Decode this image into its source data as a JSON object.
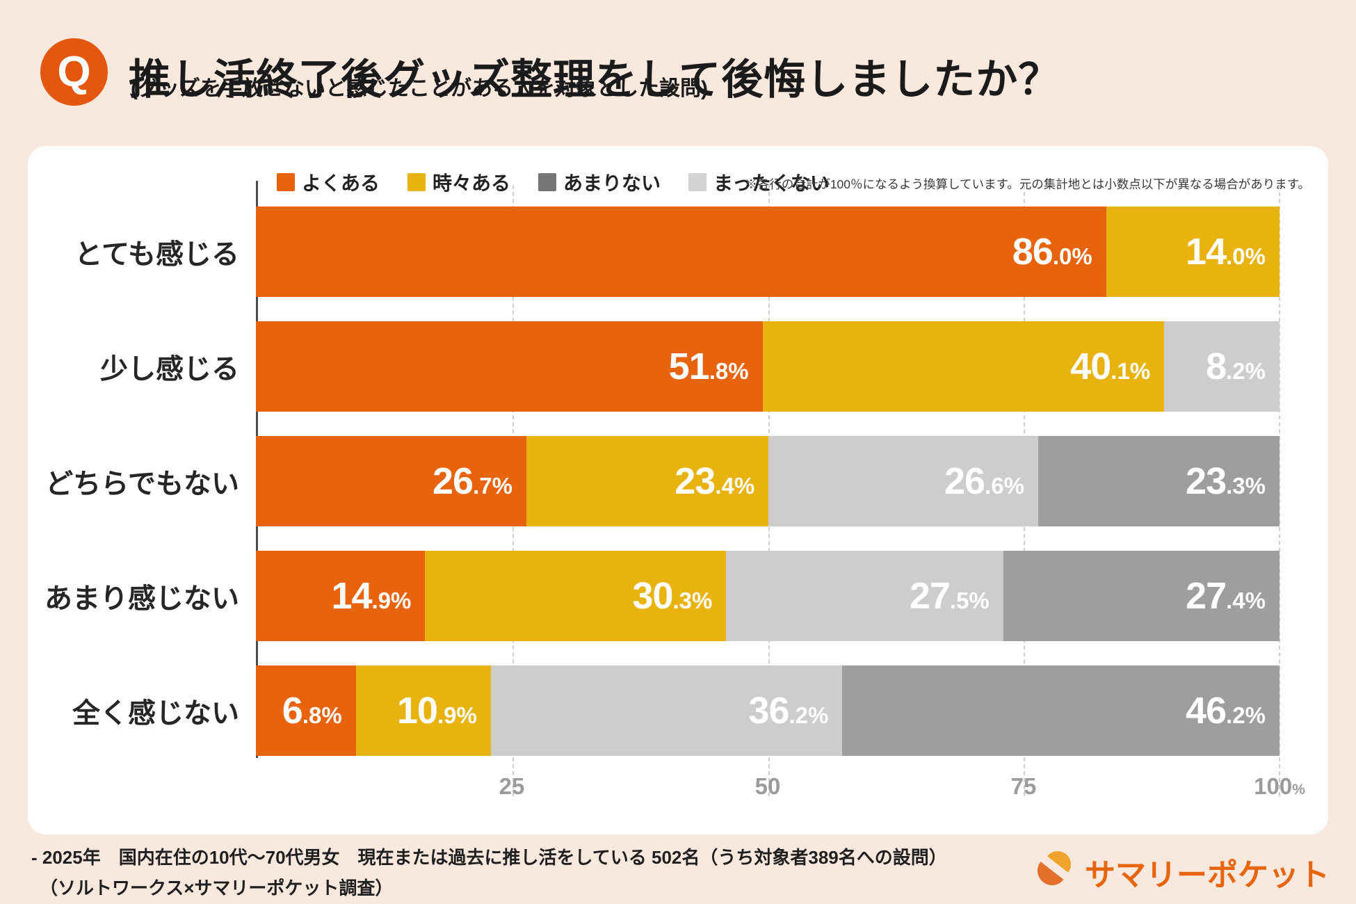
{
  "header": {
    "q_mark": "Q",
    "title": "推し活終了後グッズ整理をして後悔しましたか？",
    "subtitle": "(グッズを手放せないと感じたことがある人を対象とした設問)"
  },
  "chart_data": {
    "type": "bar",
    "orientation": "horizontal",
    "stacked": true,
    "unit": "%",
    "x_axis_max": 100,
    "grid": "dashed-vertical",
    "legend_position": "top",
    "note": "※各行の合計が100％になるよう換算しています。元の集計地とは小数点以下が異なる場合があります。",
    "palette": {
      "orange": "#E8630D",
      "yellow": "#E9B30F",
      "gray_light": "#CDCDCD",
      "gray_dark": "#9E9E9E"
    },
    "legend": [
      {
        "label": "よくある",
        "color": "#E8630D"
      },
      {
        "label": "時々ある",
        "color": "#E9B30F"
      },
      {
        "label": "あまりない",
        "color": "#757575"
      },
      {
        "label": "まったくない",
        "color": "#D3D3D3"
      }
    ],
    "categories": [
      "とても感じる",
      "少し感じる",
      "どちらでもない",
      "あまり感じない",
      "全く感じない"
    ],
    "rows": [
      {
        "category": "とても感じる",
        "segments": [
          {
            "value": 86.0,
            "color": "orange"
          },
          {
            "value": 14.0,
            "color": "yellow"
          }
        ]
      },
      {
        "category": "少し感じる",
        "segments": [
          {
            "value": 51.8,
            "color": "orange"
          },
          {
            "value": 40.1,
            "color": "yellow"
          },
          {
            "value": 8.2,
            "color": "gray_light"
          }
        ]
      },
      {
        "category": "どちらでもない",
        "segments": [
          {
            "value": 26.7,
            "color": "orange"
          },
          {
            "value": 23.4,
            "color": "yellow"
          },
          {
            "value": 26.6,
            "color": "gray_light"
          },
          {
            "value": 23.3,
            "color": "gray_dark"
          }
        ]
      },
      {
        "category": "あまり感じない",
        "segments": [
          {
            "value": 14.9,
            "color": "orange"
          },
          {
            "value": 30.3,
            "color": "yellow"
          },
          {
            "value": 27.5,
            "color": "gray_light"
          },
          {
            "value": 27.4,
            "color": "gray_dark"
          }
        ]
      },
      {
        "category": "全く感じない",
        "segments": [
          {
            "value": 6.8,
            "color": "orange"
          },
          {
            "value": 10.9,
            "color": "yellow"
          },
          {
            "value": 36.2,
            "color": "gray_light"
          },
          {
            "value": 46.2,
            "color": "gray_dark"
          }
        ]
      }
    ],
    "x_ticks": [
      {
        "value": 25,
        "label": "25",
        "suffix": ""
      },
      {
        "value": 50,
        "label": "50",
        "suffix": ""
      },
      {
        "value": 75,
        "label": "75",
        "suffix": ""
      },
      {
        "value": 100,
        "label": "100",
        "suffix": "%"
      }
    ]
  },
  "footer": {
    "line1": "- 2025年　国内在住の10代～70代男女　現在または過去に推し活をしている 502名（うち対象者389名への設問）",
    "line2": "（ソルトワークス×サマリーポケット調査）"
  },
  "logo": {
    "text": "サマリーポケット"
  }
}
